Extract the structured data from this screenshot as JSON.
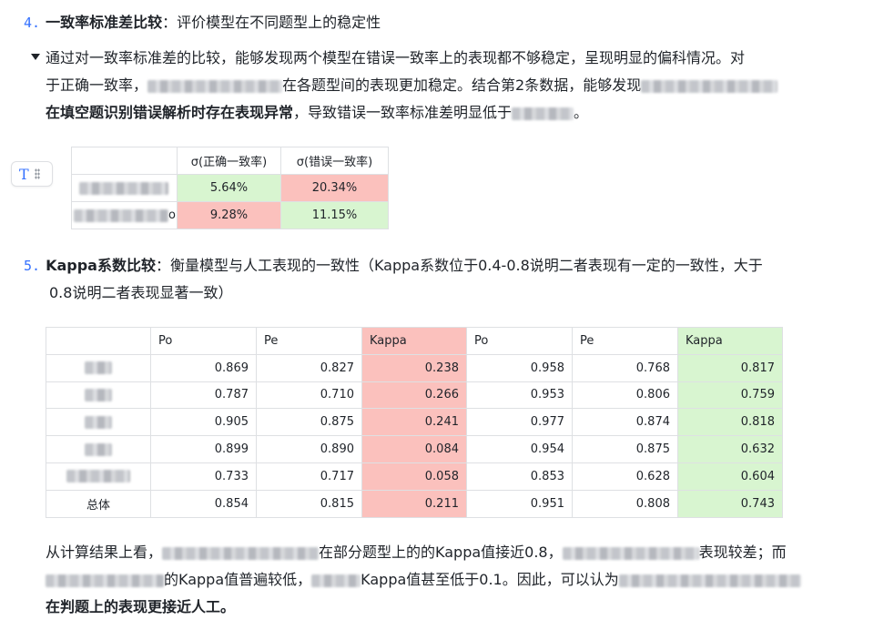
{
  "section4": {
    "num": "4.",
    "title": "一致率标准差比较",
    "desc": "：评价模型在不同题型上的稳定性",
    "bullet_text_1": "通过对一致率标准差的比较，能够发现两个模型在错误一致率上的表现都不够稳定，呈现明显的偏科情况。对",
    "bullet_text_2a": "于正确一致率，",
    "bullet_text_2b": "在各题型间的表现更加稳定。结合第2条数据，能够发现",
    "bullet_text_3b": "在填空题识别错误解析时存在表现异常",
    "bullet_text_3c": "，导致错误一致率标准差明显低于",
    "bullet_text_3d": "。"
  },
  "sigma_table": {
    "headers": [
      "",
      "σ(正确一致率)",
      "σ(错误一致率)"
    ],
    "rows": [
      {
        "c1": "5.64%",
        "c2": "20.34%"
      },
      {
        "c1": "9.28%",
        "c2": "11.15%"
      }
    ],
    "row2_suffix": "o"
  },
  "section5": {
    "num": "5.",
    "title": "Kappa系数比较",
    "desc_1": "：衡量模型与人工表现的一致性（Kappa系数位于0.4-0.8说明二者表现有一定的一致性，大于",
    "desc_2": "0.8说明二者表现显著一致）"
  },
  "kappa_table": {
    "headers": [
      "",
      "Po",
      "Pe",
      "Kappa",
      "Po",
      "Pe",
      "Kappa"
    ],
    "rows": [
      {
        "label": "",
        "v": [
          "0.869",
          "0.827",
          "0.238",
          "0.958",
          "0.768",
          "0.817"
        ]
      },
      {
        "label": "",
        "v": [
          "0.787",
          "0.710",
          "0.266",
          "0.953",
          "0.806",
          "0.759"
        ]
      },
      {
        "label": "",
        "v": [
          "0.905",
          "0.875",
          "0.241",
          "0.977",
          "0.874",
          "0.818"
        ]
      },
      {
        "label": "",
        "v": [
          "0.899",
          "0.890",
          "0.084",
          "0.954",
          "0.875",
          "0.632"
        ]
      },
      {
        "label": "",
        "v": [
          "0.733",
          "0.717",
          "0.058",
          "0.853",
          "0.628",
          "0.604"
        ]
      },
      {
        "label": "总体",
        "v": [
          "0.854",
          "0.815",
          "0.211",
          "0.951",
          "0.808",
          "0.743"
        ]
      }
    ]
  },
  "conclusion": {
    "line1a": "从计算结果上看，",
    "line1b": "在部分题型上的的Kappa值接近0.8，",
    "line1c": "表现较差；而",
    "line2a": "的Kappa值普遍较低，",
    "line2b": "Kappa值甚至低于0.1。因此，可以认为",
    "line3": "在判题上的表现更接近人工。"
  },
  "colors": {
    "accent": "#3370ff",
    "highlight_red": "#fbc1bd",
    "highlight_green": "#d8f5d0"
  }
}
